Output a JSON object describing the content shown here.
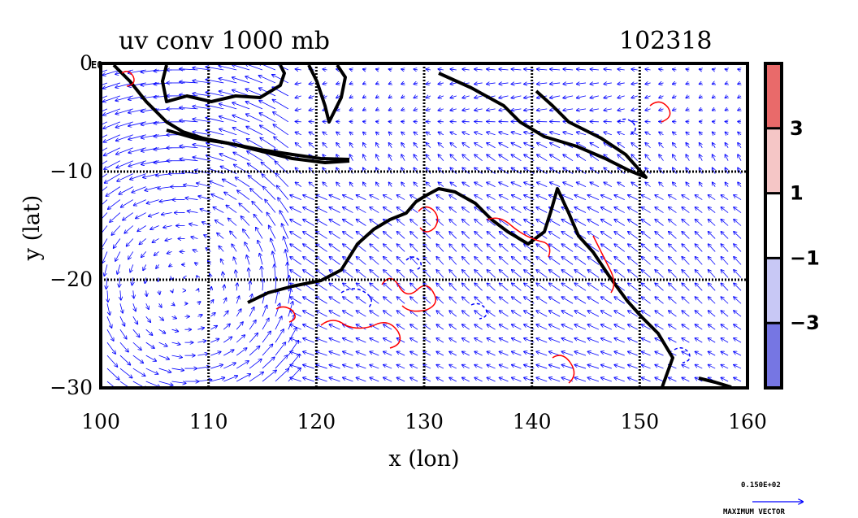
{
  "chart_data": {
    "type": "vector-field-with-contours",
    "title": "uv conv 1000 mb",
    "timestamp": "102318",
    "xlabel": "x (lon)",
    "ylabel": "y (lat)",
    "xlim": [
      100,
      160
    ],
    "ylim": [
      -30,
      0
    ],
    "x_ticks": [
      100,
      110,
      120,
      130,
      140,
      150,
      160
    ],
    "y_ticks": [
      0,
      -10,
      -20,
      -30
    ],
    "y_tick_labels": [
      "0",
      "−10",
      "−20",
      "−30"
    ],
    "y_tick_exponent": "E0",
    "grid": "dotted, every 10 units",
    "colorbar": {
      "levels": [
        -5,
        -3,
        -1,
        1,
        3,
        5
      ],
      "labels": [
        "3",
        "1",
        "−1",
        "−3"
      ],
      "label_values": [
        3,
        1,
        -1,
        -3
      ],
      "colors": [
        "#e96a6a",
        "#f5c6c6",
        "#ffffff",
        "#c8c8f5",
        "#7676e3"
      ]
    },
    "vector_color": "#0000ff",
    "contour_colors": {
      "positive": "#ff0000",
      "negative": "#0000ff"
    },
    "reference_vector": {
      "value": "0.150E+02",
      "label": "MAXIMUM VECTOR"
    }
  }
}
